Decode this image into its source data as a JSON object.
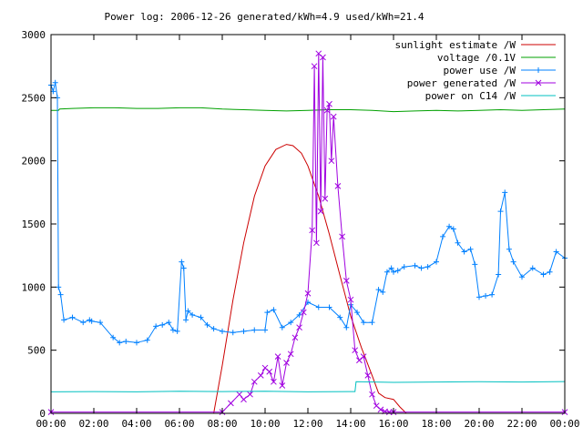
{
  "chart_data": {
    "type": "line",
    "title": "Power log: 2006-12-26 generated/kWh=4.9 used/kWh=21.4",
    "xlabel": "",
    "ylabel": "",
    "x_unit": "time of day (hours)",
    "xlim": [
      0,
      24
    ],
    "ylim": [
      0,
      3000
    ],
    "x_ticks": [
      {
        "value": 0,
        "label": "00:00"
      },
      {
        "value": 2,
        "label": "02:00"
      },
      {
        "value": 4,
        "label": "04:00"
      },
      {
        "value": 6,
        "label": "06:00"
      },
      {
        "value": 8,
        "label": "08:00"
      },
      {
        "value": 10,
        "label": "10:00"
      },
      {
        "value": 12,
        "label": "12:00"
      },
      {
        "value": 14,
        "label": "14:00"
      },
      {
        "value": 16,
        "label": "16:00"
      },
      {
        "value": 18,
        "label": "18:00"
      },
      {
        "value": 20,
        "label": "20:00"
      },
      {
        "value": 22,
        "label": "22:00"
      },
      {
        "value": 24,
        "label": "00:00"
      }
    ],
    "y_ticks": [
      {
        "value": 0,
        "label": "0"
      },
      {
        "value": 500,
        "label": "500"
      },
      {
        "value": 1000,
        "label": "1000"
      },
      {
        "value": 1500,
        "label": "1500"
      },
      {
        "value": 2000,
        "label": "2000"
      },
      {
        "value": 2500,
        "label": "2500"
      },
      {
        "value": 3000,
        "label": "3000"
      }
    ],
    "grid": false,
    "legend_position": "top-right",
    "series": [
      {
        "name": "sunlight estimate /W",
        "color": "#cc0000",
        "marker": "none",
        "x": [
          0,
          7.6,
          8.0,
          8.5,
          9.0,
          9.5,
          10.0,
          10.5,
          11.0,
          11.3,
          11.7,
          12.0,
          12.5,
          13.0,
          13.5,
          14.0,
          14.5,
          15.0,
          15.3,
          15.6,
          16.0,
          16.3,
          16.6,
          17.0,
          24
        ],
        "y": [
          0,
          0,
          380,
          900,
          1350,
          1720,
          1960,
          2090,
          2130,
          2120,
          2060,
          1960,
          1720,
          1420,
          1090,
          770,
          520,
          300,
          160,
          125,
          110,
          50,
          0,
          0,
          0
        ]
      },
      {
        "name": "voltage /0.1V",
        "color": "#00a000",
        "marker": "none",
        "x": [
          0,
          0.35,
          0.4,
          1,
          2,
          3,
          4,
          5,
          6,
          7,
          8,
          9,
          10,
          11,
          12,
          13,
          14,
          15,
          16,
          17,
          18,
          19,
          20,
          21,
          22,
          23,
          24
        ],
        "y": [
          2400,
          2400,
          2410,
          2415,
          2420,
          2420,
          2415,
          2415,
          2420,
          2420,
          2410,
          2405,
          2400,
          2395,
          2400,
          2405,
          2405,
          2400,
          2390,
          2395,
          2400,
          2395,
          2400,
          2405,
          2400,
          2405,
          2410
        ]
      },
      {
        "name": "power use /W",
        "color": "#0080ff",
        "marker": "plus",
        "x": [
          0,
          0.1,
          0.2,
          0.3,
          0.35,
          0.45,
          0.6,
          1.0,
          1.5,
          1.8,
          1.9,
          2.3,
          2.9,
          3.2,
          3.5,
          4.0,
          4.5,
          4.9,
          5.2,
          5.5,
          5.7,
          5.9,
          6.1,
          6.2,
          6.3,
          6.4,
          6.6,
          7.0,
          7.3,
          7.6,
          8.0,
          8.5,
          9.0,
          9.5,
          10.0,
          10.1,
          10.4,
          10.8,
          11.2,
          11.6,
          12.0,
          12.5,
          13.0,
          13.5,
          13.8,
          14.0,
          14.3,
          14.6,
          15.0,
          15.3,
          15.5,
          15.7,
          15.9,
          16.0,
          16.2,
          16.5,
          17.0,
          17.3,
          17.6,
          18.0,
          18.3,
          18.6,
          18.8,
          19.0,
          19.3,
          19.6,
          19.8,
          20.0,
          20.3,
          20.6,
          20.9,
          21.0,
          21.2,
          21.4,
          21.6,
          22.0,
          22.5,
          23.0,
          23.3,
          23.6,
          24
        ],
        "y": [
          2600,
          2550,
          2620,
          2500,
          1000,
          940,
          740,
          760,
          720,
          740,
          730,
          720,
          600,
          560,
          570,
          560,
          580,
          690,
          700,
          720,
          660,
          650,
          1200,
          1150,
          740,
          810,
          780,
          760,
          700,
          670,
          650,
          640,
          650,
          660,
          660,
          800,
          820,
          680,
          720,
          780,
          880,
          840,
          840,
          760,
          680,
          860,
          800,
          720,
          720,
          980,
          960,
          1120,
          1150,
          1120,
          1130,
          1160,
          1170,
          1150,
          1160,
          1200,
          1400,
          1480,
          1460,
          1350,
          1280,
          1300,
          1180,
          920,
          930,
          940,
          1100,
          1600,
          1750,
          1300,
          1200,
          1080,
          1150,
          1100,
          1120,
          1280,
          1230
        ]
      },
      {
        "name": "power generated /W",
        "color": "#a000e0",
        "marker": "cross",
        "x": [
          0,
          8.0,
          8.4,
          8.8,
          9.0,
          9.3,
          9.5,
          9.8,
          10.0,
          10.2,
          10.4,
          10.6,
          10.8,
          11.0,
          11.2,
          11.4,
          11.6,
          11.8,
          12.0,
          12.2,
          12.3,
          12.4,
          12.5,
          12.6,
          12.7,
          12.8,
          12.9,
          13.0,
          13.1,
          13.2,
          13.4,
          13.6,
          13.8,
          14.0,
          14.2,
          14.4,
          14.6,
          14.8,
          15.0,
          15.2,
          15.4,
          15.6,
          15.8,
          16.0,
          24
        ],
        "y": [
          10,
          10,
          80,
          150,
          110,
          150,
          250,
          300,
          360,
          330,
          250,
          450,
          220,
          400,
          470,
          600,
          680,
          800,
          950,
          1450,
          2750,
          1350,
          2850,
          1600,
          2820,
          1700,
          2400,
          2450,
          2000,
          2350,
          1800,
          1400,
          1050,
          900,
          500,
          420,
          450,
          300,
          150,
          60,
          30,
          15,
          10,
          10,
          10
        ]
      },
      {
        "name": "power on C14 /W",
        "color": "#00c0c0",
        "marker": "none",
        "x": [
          0,
          2,
          4,
          6,
          8,
          10,
          12,
          14.2,
          14.25,
          16,
          18,
          20,
          22,
          24
        ],
        "y": [
          170,
          172,
          170,
          175,
          172,
          175,
          170,
          172,
          250,
          245,
          248,
          250,
          248,
          252
        ]
      }
    ]
  }
}
